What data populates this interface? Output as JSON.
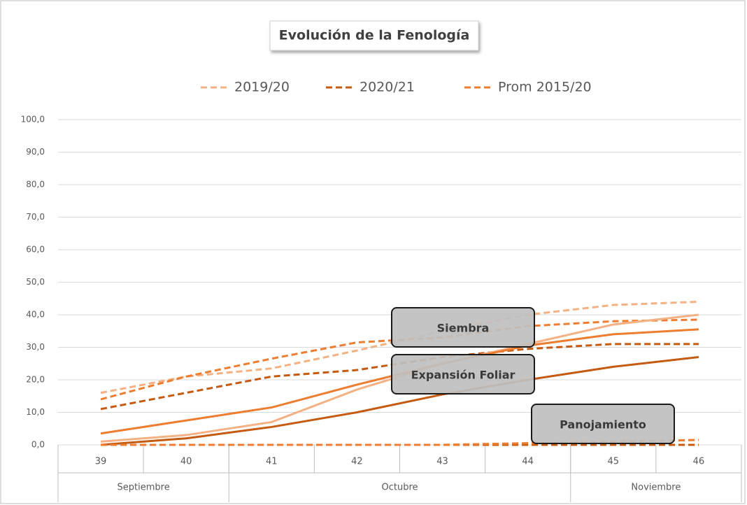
{
  "chart_data": {
    "type": "line",
    "title": "Evolución de la Fenología",
    "categories": [
      "39",
      "40",
      "41",
      "42",
      "43",
      "44",
      "45",
      "46"
    ],
    "month_groups": [
      {
        "label": "Septiembre",
        "span": 2
      },
      {
        "label": "Octubre",
        "span": 4
      },
      {
        "label": "Noviembre",
        "span": 2
      }
    ],
    "ylim": [
      0,
      100
    ],
    "yticks": [
      {
        "value": 0,
        "label": "0,0"
      },
      {
        "value": 10,
        "label": "10,0"
      },
      {
        "value": 20,
        "label": "20,0"
      },
      {
        "value": 30,
        "label": "30,0"
      },
      {
        "value": 40,
        "label": "40,0"
      },
      {
        "value": 50,
        "label": "50,0"
      },
      {
        "value": 60,
        "label": "60,0"
      },
      {
        "value": 70,
        "label": "70,0"
      },
      {
        "value": 80,
        "label": "80,0"
      },
      {
        "value": 90,
        "label": "90,0"
      },
      {
        "value": 100,
        "label": "100,0"
      }
    ],
    "grid": true,
    "legend": "top",
    "annotations": [
      "Siembra",
      "Expansión Foliar",
      "Panojamiento"
    ],
    "series": [
      {
        "name": "2019/20",
        "group": 0,
        "dashed": true,
        "color": "#f4b183",
        "values": [
          16,
          21,
          23.5,
          29,
          35,
          40,
          43,
          44
        ]
      },
      {
        "name": "2020/21",
        "group": 0,
        "dashed": true,
        "color": "#c55a11",
        "values": [
          11,
          16,
          21,
          23,
          27,
          29.5,
          31,
          31
        ]
      },
      {
        "name": "Prom 2015/20",
        "group": 0,
        "dashed": true,
        "color": "#ed7d31",
        "values": [
          14,
          21,
          26.5,
          31.5,
          33,
          36.5,
          38,
          38.5
        ]
      },
      {
        "name": "2019/20",
        "group": 1,
        "dashed": false,
        "color": "#f4b183",
        "values": [
          1,
          3,
          7,
          17,
          25,
          31,
          37,
          40
        ]
      },
      {
        "name": "2020/21",
        "group": 1,
        "dashed": false,
        "color": "#c55a11",
        "values": [
          0,
          2,
          5.5,
          10,
          15.5,
          20,
          24,
          27
        ]
      },
      {
        "name": "Prom 2015/20",
        "group": 1,
        "dashed": false,
        "color": "#ed7d31",
        "values": [
          3.5,
          7.5,
          11.5,
          18.5,
          25,
          30.5,
          34,
          35.5
        ]
      },
      {
        "name": "2019/20",
        "group": 2,
        "dashed": true,
        "color": "#f4b183",
        "values": [
          0,
          0,
          0,
          0,
          0,
          0.5,
          1,
          1.5
        ]
      },
      {
        "name": "2020/21",
        "group": 2,
        "dashed": true,
        "color": "#c55a11",
        "values": [
          0,
          0,
          0,
          0,
          0,
          0,
          0,
          0
        ]
      },
      {
        "name": "Prom 2015/20",
        "group": 2,
        "dashed": true,
        "color": "#ed7d31",
        "values": [
          0,
          0,
          0,
          0,
          0,
          0.5,
          1,
          1.5
        ]
      }
    ]
  }
}
